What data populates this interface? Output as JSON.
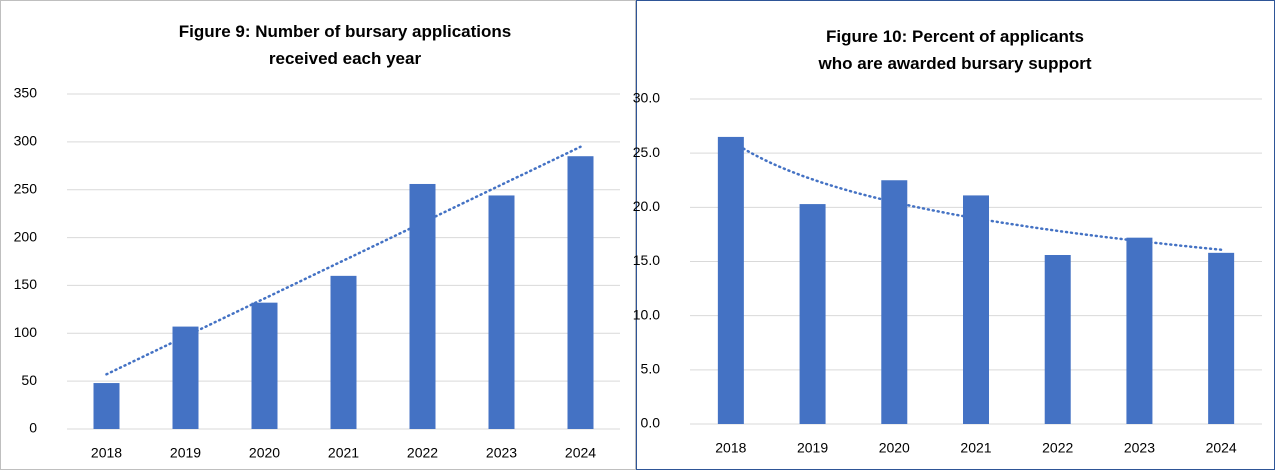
{
  "chart_data": [
    {
      "type": "bar",
      "title": "Figure 9: Number of bursary applications received each year",
      "categories": [
        "2018",
        "2019",
        "2020",
        "2021",
        "2022",
        "2023",
        "2024"
      ],
      "values": [
        48,
        107,
        132,
        160,
        256,
        244,
        285
      ],
      "color": "#4472c4",
      "ylim": [
        0,
        350
      ],
      "yticks": [
        0,
        50,
        100,
        150,
        200,
        250,
        300,
        350
      ],
      "grid": true,
      "trendline": "linear"
    },
    {
      "type": "bar",
      "title": "Figure 10: Percent of applicants who are awarded bursary support",
      "categories": [
        "2018",
        "2019",
        "2020",
        "2021",
        "2022",
        "2023",
        "2024"
      ],
      "values": [
        26.5,
        20.3,
        22.5,
        21.1,
        15.6,
        17.2,
        15.8
      ],
      "color": "#4472c4",
      "ylim": [
        0,
        30
      ],
      "yticks": [
        {
          "value": 0,
          "label": "0.0"
        },
        {
          "value": 5,
          "label": "5.0"
        },
        {
          "value": 10,
          "label": "10.0"
        },
        {
          "value": 15,
          "label": "15.0"
        },
        {
          "value": 20,
          "label": "20.0"
        },
        {
          "value": 25,
          "label": "25.0"
        },
        {
          "value": 30,
          "label": "30.0"
        }
      ],
      "grid": true,
      "trendline": "logarithmic"
    }
  ]
}
